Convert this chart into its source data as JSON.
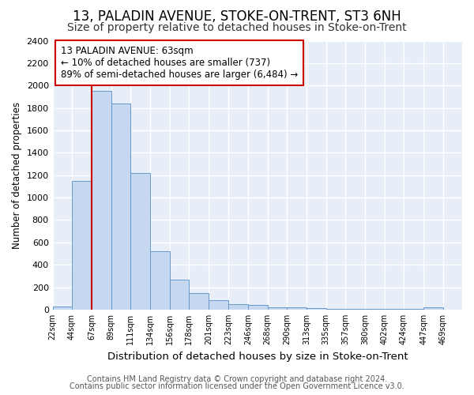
{
  "title": "13, PALADIN AVENUE, STOKE-ON-TRENT, ST3 6NH",
  "subtitle": "Size of property relative to detached houses in Stoke-on-Trent",
  "xlabel": "Distribution of detached houses by size in Stoke-on-Trent",
  "ylabel": "Number of detached properties",
  "footnote1": "Contains HM Land Registry data © Crown copyright and database right 2024.",
  "footnote2": "Contains public sector information licensed under the Open Government Licence v3.0.",
  "annotation_title": "13 PALADIN AVENUE: 63sqm",
  "annotation_line1": "← 10% of detached houses are smaller (737)",
  "annotation_line2": "89% of semi-detached houses are larger (6,484) →",
  "bar_fill_color": "#c5d8f0",
  "bar_edge_color": "#6699cc",
  "redline_color": "#cc0000",
  "redline_x": 67,
  "categories": [
    "22sqm",
    "44sqm",
    "67sqm",
    "89sqm",
    "111sqm",
    "134sqm",
    "156sqm",
    "178sqm",
    "201sqm",
    "223sqm",
    "246sqm",
    "268sqm",
    "290sqm",
    "313sqm",
    "335sqm",
    "357sqm",
    "380sqm",
    "402sqm",
    "424sqm",
    "447sqm",
    "469sqm"
  ],
  "bin_edges": [
    22,
    44,
    67,
    89,
    111,
    134,
    156,
    178,
    201,
    223,
    246,
    268,
    290,
    313,
    335,
    357,
    380,
    402,
    424,
    447,
    469,
    491
  ],
  "values": [
    30,
    1150,
    1950,
    1840,
    1220,
    520,
    270,
    150,
    85,
    50,
    40,
    20,
    20,
    15,
    10,
    10,
    8,
    5,
    5,
    20,
    0
  ],
  "ylim": [
    0,
    2400
  ],
  "yticks": [
    0,
    200,
    400,
    600,
    800,
    1000,
    1200,
    1400,
    1600,
    1800,
    2000,
    2200,
    2400
  ],
  "fig_background": "#ffffff",
  "plot_background": "#e8eef8",
  "grid_color": "#ffffff",
  "title_fontsize": 12,
  "subtitle_fontsize": 10,
  "annotation_box_facecolor": "#ffffff",
  "annotation_box_edgecolor": "#cc0000",
  "footnote_color": "#555555",
  "footnote_fontsize": 7
}
